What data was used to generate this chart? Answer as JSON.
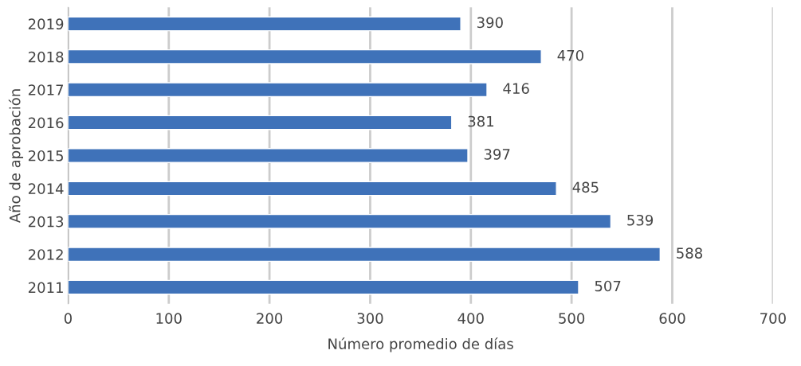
{
  "chart_data": {
    "type": "bar",
    "orientation": "horizontal",
    "xlabel": "Número promedio de días",
    "ylabel": "Año de aprobación",
    "categories": [
      "2019",
      "2018",
      "2017",
      "2016",
      "2015",
      "2014",
      "2013",
      "2012",
      "2011"
    ],
    "values": [
      390,
      470,
      416,
      381,
      397,
      485,
      539,
      588,
      507
    ],
    "color": "#3f72b9",
    "xlim": [
      0,
      700
    ],
    "xticks": [
      0,
      100,
      200,
      300,
      400,
      500,
      600,
      700
    ],
    "grid": "x",
    "data_labels": true
  }
}
